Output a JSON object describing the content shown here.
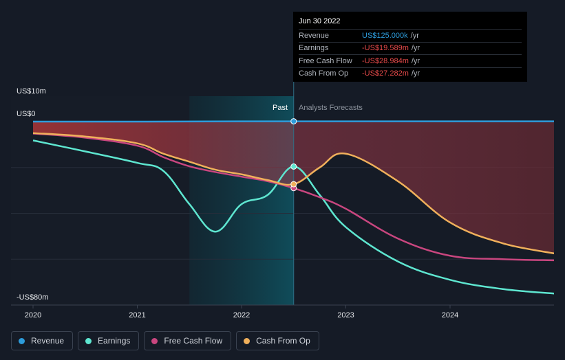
{
  "tooltip": {
    "date": "Jun 30 2022",
    "rows": [
      {
        "label": "Revenue",
        "value": "US$125.000k",
        "unit": "/yr",
        "color": "#2d9cdb"
      },
      {
        "label": "Earnings",
        "value": "-US$19.589m",
        "unit": "/yr",
        "color": "#e84a4a"
      },
      {
        "label": "Free Cash Flow",
        "value": "-US$28.984m",
        "unit": "/yr",
        "color": "#e84a4a"
      },
      {
        "label": "Cash From Op",
        "value": "-US$27.282m",
        "unit": "/yr",
        "color": "#e84a4a"
      }
    ]
  },
  "regions": {
    "past_label": "Past",
    "forecast_label": "Analysts Forecasts"
  },
  "legend": [
    {
      "label": "Revenue",
      "color": "#2d9cdb"
    },
    {
      "label": "Earnings",
      "color": "#5ee6d0"
    },
    {
      "label": "Free Cash Flow",
      "color": "#c9467f"
    },
    {
      "label": "Cash From Op",
      "color": "#f0b05b"
    }
  ],
  "chart_data": {
    "type": "line",
    "y_unit": "US$ millions",
    "ylim": [
      -80,
      10
    ],
    "y_tick_labels": [
      {
        "value": 10,
        "label": "US$10m"
      },
      {
        "value": 0,
        "label": "US$0"
      },
      {
        "value": -80,
        "label": "-US$80m"
      }
    ],
    "y_gridlines": [
      0,
      -20,
      -40,
      -60,
      -80
    ],
    "x_tick_labels": [
      "2020",
      "2021",
      "2022",
      "2023",
      "2024"
    ],
    "xlim": [
      2020.0,
      2025.0
    ],
    "highlight_x": 2022.5,
    "shaded_past_range": [
      2021.5,
      2022.5
    ],
    "series": [
      {
        "name": "Revenue",
        "color": "#2d9cdb",
        "points": [
          [
            2020.0,
            0.0
          ],
          [
            2021.0,
            0.0
          ],
          [
            2022.0,
            0.1
          ],
          [
            2022.5,
            0.125
          ],
          [
            2023.0,
            0.1
          ],
          [
            2024.0,
            0.1
          ],
          [
            2025.0,
            0.1
          ]
        ]
      },
      {
        "name": "Earnings",
        "color": "#5ee6d0",
        "points": [
          [
            2020.0,
            -8.2
          ],
          [
            2020.5,
            -13.0
          ],
          [
            2021.0,
            -18.0
          ],
          [
            2021.25,
            -21.5
          ],
          [
            2021.5,
            -36.0
          ],
          [
            2021.75,
            -48.0
          ],
          [
            2022.0,
            -36.0
          ],
          [
            2022.25,
            -32.0
          ],
          [
            2022.5,
            -19.6
          ],
          [
            2022.75,
            -32.0
          ],
          [
            2023.0,
            -46.0
          ],
          [
            2023.5,
            -61.0
          ],
          [
            2024.0,
            -69.0
          ],
          [
            2024.5,
            -73.0
          ],
          [
            2025.0,
            -75.0
          ]
        ]
      },
      {
        "name": "Free Cash Flow",
        "color": "#c9467f",
        "points": [
          [
            2020.0,
            -5.2
          ],
          [
            2020.5,
            -7.0
          ],
          [
            2021.0,
            -10.5
          ],
          [
            2021.25,
            -15.5
          ],
          [
            2021.5,
            -19.5
          ],
          [
            2021.75,
            -22.0
          ],
          [
            2022.0,
            -24.0
          ],
          [
            2022.25,
            -26.0
          ],
          [
            2022.5,
            -29.0
          ],
          [
            2022.75,
            -33.0
          ],
          [
            2023.0,
            -38.0
          ],
          [
            2023.5,
            -51.0
          ],
          [
            2024.0,
            -58.5
          ],
          [
            2024.5,
            -60.0
          ],
          [
            2025.0,
            -60.5
          ]
        ]
      },
      {
        "name": "Cash From Op",
        "color": "#f0b05b",
        "points": [
          [
            2020.0,
            -5.0
          ],
          [
            2020.5,
            -6.5
          ],
          [
            2021.0,
            -9.5
          ],
          [
            2021.25,
            -14.0
          ],
          [
            2021.5,
            -17.5
          ],
          [
            2021.75,
            -21.0
          ],
          [
            2022.0,
            -23.0
          ],
          [
            2022.25,
            -25.5
          ],
          [
            2022.5,
            -27.3
          ],
          [
            2022.75,
            -20.0
          ],
          [
            2023.0,
            -14.0
          ],
          [
            2023.5,
            -26.0
          ],
          [
            2024.0,
            -44.0
          ],
          [
            2024.5,
            -53.0
          ],
          [
            2025.0,
            -57.5
          ]
        ]
      }
    ]
  }
}
